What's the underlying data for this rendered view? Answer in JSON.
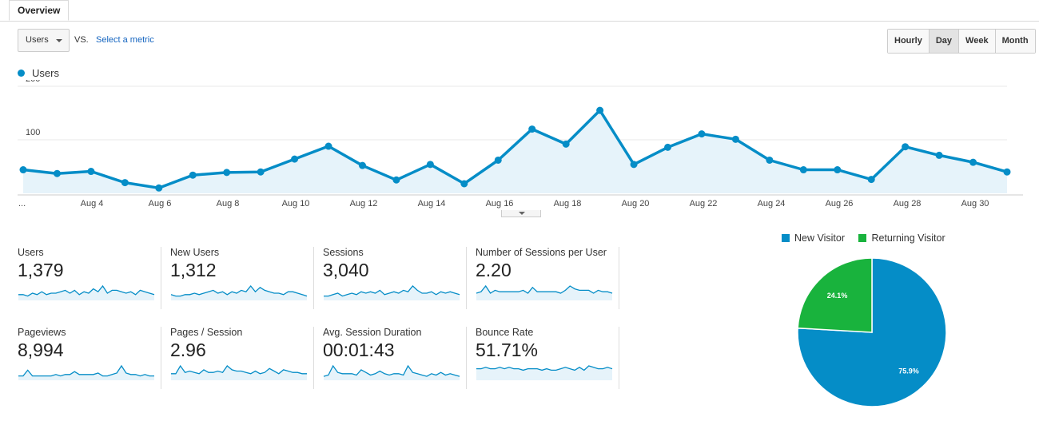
{
  "tabs": {
    "overview": "Overview"
  },
  "controls": {
    "metric_select": "Users",
    "vs_label": "VS.",
    "select_metric_link": "Select a metric",
    "granularity": [
      "Hourly",
      "Day",
      "Week",
      "Month"
    ],
    "granularity_active": "Day"
  },
  "chart_data": [
    {
      "type": "area",
      "series": [
        {
          "name": "Users",
          "color": "#058dc7",
          "values": [
            44,
            37,
            41,
            20,
            10,
            34,
            39,
            40,
            64,
            88,
            52,
            25,
            54,
            18,
            62,
            120,
            92,
            155,
            54,
            86,
            111,
            101,
            62,
            44,
            44,
            26,
            87,
            71,
            58,
            40
          ]
        }
      ],
      "x": [
        "Aug 1",
        "Aug 2",
        "Aug 3",
        "Aug 4",
        "Aug 5",
        "Aug 6",
        "Aug 7",
        "Aug 8",
        "Aug 9",
        "Aug 10",
        "Aug 11",
        "Aug 12",
        "Aug 13",
        "Aug 14",
        "Aug 15",
        "Aug 16",
        "Aug 17",
        "Aug 18",
        "Aug 19",
        "Aug 20",
        "Aug 21",
        "Aug 22",
        "Aug 23",
        "Aug 24",
        "Aug 25",
        "Aug 26",
        "Aug 27",
        "Aug 28",
        "Aug 29",
        "Aug 30"
      ],
      "x_tick_labels": [
        "...",
        "Aug 4",
        "Aug 6",
        "Aug 8",
        "Aug 10",
        "Aug 12",
        "Aug 14",
        "Aug 16",
        "Aug 18",
        "Aug 20",
        "Aug 22",
        "Aug 24",
        "Aug 26",
        "Aug 28",
        "Aug 30"
      ],
      "y_tick_labels": [
        "100",
        "200"
      ],
      "ylim": [
        0,
        200
      ],
      "grid": true,
      "legend": "top-left"
    },
    {
      "type": "pie",
      "legend": "top",
      "slices": [
        {
          "name": "New Visitor",
          "value": 75.9,
          "label": "75.9%",
          "color": "#058dc7"
        },
        {
          "name": "Returning Visitor",
          "value": 24.1,
          "label": "24.1%",
          "color": "#19b33d"
        }
      ]
    }
  ],
  "metrics": [
    {
      "label": "Users",
      "value": "1,379",
      "spark": [
        4,
        4,
        3,
        5,
        4,
        6,
        4,
        5,
        5,
        6,
        7,
        5,
        7,
        4,
        6,
        5,
        8,
        6,
        10,
        5,
        7,
        7,
        6,
        5,
        6,
        4,
        7,
        6,
        5,
        4
      ]
    },
    {
      "label": "New Users",
      "value": "1,312",
      "spark": [
        4,
        3,
        3,
        4,
        4,
        5,
        4,
        5,
        6,
        7,
        5,
        6,
        4,
        6,
        5,
        7,
        6,
        10,
        6,
        9,
        7,
        6,
        5,
        5,
        4,
        6,
        6,
        5,
        4,
        3
      ]
    },
    {
      "label": "Sessions",
      "value": "3,040",
      "spark": [
        3,
        3,
        4,
        5,
        3,
        4,
        5,
        4,
        6,
        5,
        6,
        5,
        7,
        4,
        5,
        6,
        5,
        7,
        6,
        10,
        7,
        5,
        5,
        6,
        4,
        6,
        5,
        6,
        5,
        4
      ]
    },
    {
      "label": "Number of Sessions per User",
      "value": "2.20",
      "spark": [
        5,
        6,
        10,
        5,
        7,
        6,
        6,
        6,
        6,
        6,
        7,
        5,
        9,
        6,
        6,
        6,
        6,
        6,
        5,
        7,
        10,
        8,
        7,
        7,
        7,
        5,
        7,
        6,
        6,
        5
      ]
    },
    {
      "label": "Pageviews",
      "value": "8,994",
      "spark": [
        3,
        3,
        7,
        3,
        3,
        3,
        3,
        3,
        4,
        3,
        4,
        4,
        6,
        4,
        4,
        4,
        4,
        5,
        3,
        3,
        4,
        5,
        10,
        5,
        4,
        4,
        3,
        4,
        3,
        3
      ]
    },
    {
      "label": "Pages / Session",
      "value": "2.96",
      "spark": [
        5,
        5,
        11,
        6,
        7,
        6,
        5,
        8,
        6,
        6,
        7,
        6,
        11,
        8,
        7,
        7,
        6,
        5,
        7,
        5,
        6,
        9,
        7,
        5,
        8,
        7,
        6,
        6,
        5,
        5
      ]
    },
    {
      "label": "Avg. Session Duration",
      "value": "00:01:43",
      "spark": [
        3,
        4,
        11,
        6,
        5,
        5,
        5,
        4,
        8,
        6,
        4,
        5,
        7,
        5,
        4,
        5,
        5,
        4,
        11,
        6,
        5,
        4,
        3,
        5,
        4,
        6,
        4,
        5,
        4,
        3
      ]
    },
    {
      "label": "Bounce Rate",
      "value": "51.71%",
      "spark": [
        8,
        8,
        9,
        8,
        8,
        9,
        8,
        9,
        8,
        8,
        7,
        8,
        8,
        8,
        7,
        8,
        7,
        7,
        8,
        9,
        8,
        7,
        9,
        7,
        10,
        9,
        8,
        8,
        9,
        8
      ]
    }
  ]
}
